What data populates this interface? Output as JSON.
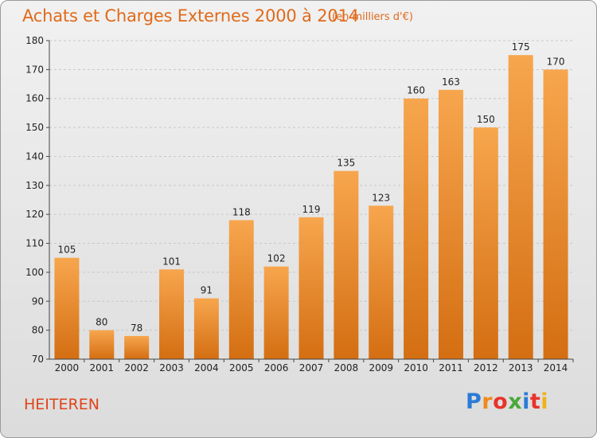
{
  "header": {
    "title": "Achats et Charges Externes 2000 à 2014",
    "unit": "(en milliers d'€)"
  },
  "footer": {
    "commune": "HEITEREN",
    "logo_text": "Proxiti",
    "logo_colors": [
      "#2b7bd6",
      "#f08a1c",
      "#e8332a",
      "#4aa83a",
      "#2b7bd6",
      "#e8332a",
      "#f0b21c"
    ]
  },
  "colors": {
    "bar_top": "#f7a64e",
    "bar_bottom": "#d46e12",
    "accent": "#e06a1a"
  },
  "chart_data": {
    "type": "bar",
    "title": "Achats et Charges Externes 2000 à 2014",
    "subtitle": "(en milliers d'€)",
    "xlabel": "",
    "ylabel": "",
    "categories": [
      "2000",
      "2001",
      "2002",
      "2003",
      "2004",
      "2005",
      "2006",
      "2007",
      "2008",
      "2009",
      "2010",
      "2011",
      "2012",
      "2013",
      "2014"
    ],
    "values": [
      105,
      80,
      78,
      101,
      91,
      118,
      102,
      119,
      135,
      123,
      160,
      163,
      150,
      175,
      170
    ],
    "ylim": [
      70,
      180
    ],
    "yticks": [
      70,
      80,
      90,
      100,
      110,
      120,
      130,
      140,
      150,
      160,
      170,
      180
    ],
    "grid": true,
    "legend": "none"
  }
}
